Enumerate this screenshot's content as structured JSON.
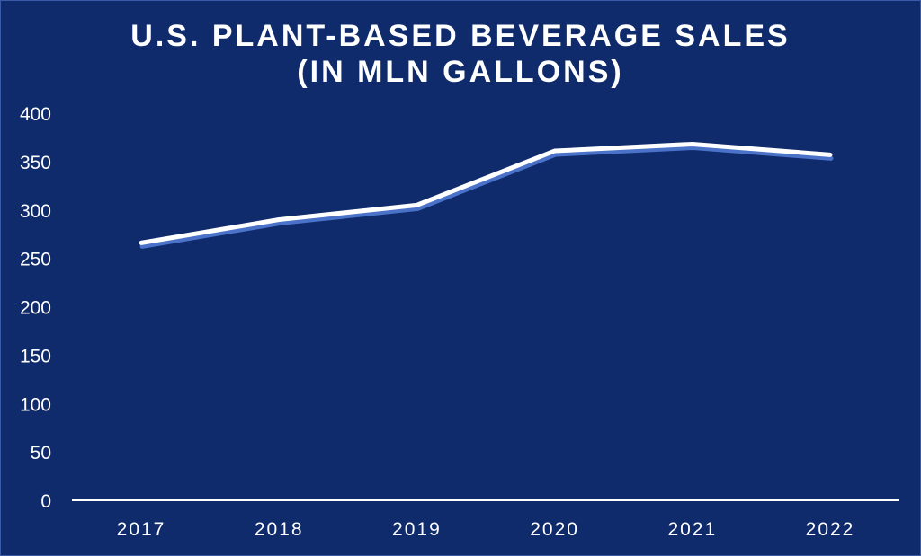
{
  "colors": {
    "background": "#0f2b6c",
    "line": "#ffffff",
    "line_shadow": "#4a72c8",
    "axis": "#ffffff"
  },
  "chart_data": {
    "type": "line",
    "title_lines": [
      "U.S. PLANT-BASED BEVERAGE SALES",
      "(IN MLN GALLONS)"
    ],
    "categories": [
      "2017",
      "2018",
      "2019",
      "2020",
      "2021",
      "2022"
    ],
    "series": [
      {
        "values": [
          266,
          290,
          305,
          361,
          368,
          357
        ]
      }
    ],
    "yticks": [
      0,
      50,
      100,
      150,
      200,
      250,
      300,
      350,
      400
    ],
    "ylim": [
      0,
      400
    ],
    "xlabel": "",
    "ylabel": "",
    "grid": false,
    "drop_lines": true,
    "legend": "none"
  }
}
